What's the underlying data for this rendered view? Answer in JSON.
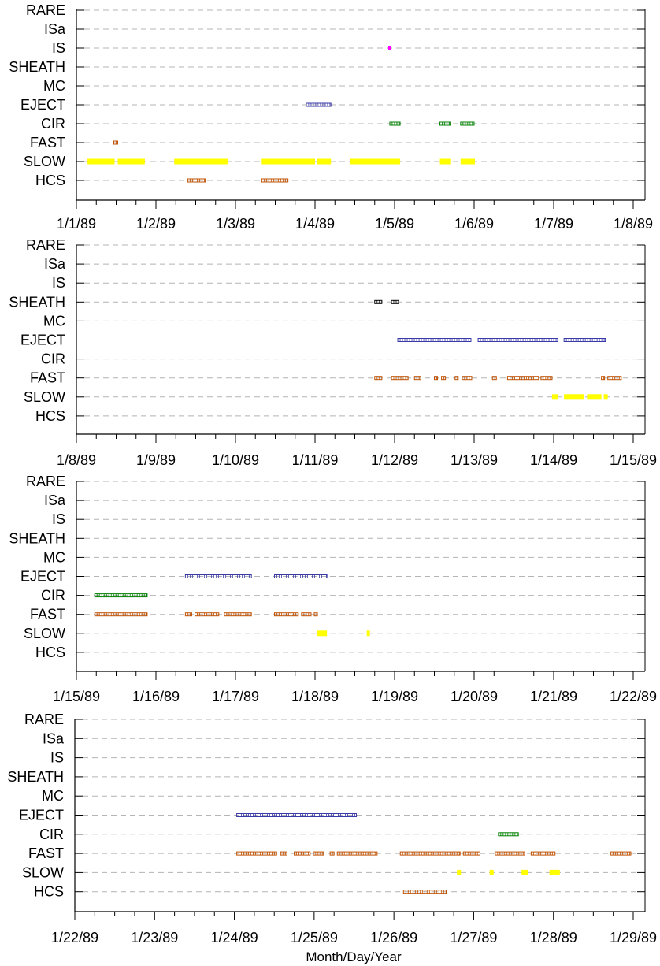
{
  "row_labels": [
    "RARE",
    "ISa",
    "IS",
    "SHEATH",
    "MC",
    "EJECT",
    "CIR",
    "FAST",
    "SLOW",
    "HCS"
  ],
  "x_title": "Month/Day/Year",
  "colors": {
    "IS": "#ff00ff",
    "SHEATH": "#000000",
    "EJECT": "#3a3aa8",
    "CIR": "#008000",
    "FAST": "#c05000",
    "SLOW": "#ffff00",
    "HCS": "#c05000",
    "grid": "#b4b4b4"
  },
  "chart_data": [
    {
      "type": "timeline",
      "x_range_days": [
        1,
        8
      ],
      "tick_labels": [
        "1/1/89",
        "1/2/89",
        "1/3/89",
        "1/4/89",
        "1/5/89",
        "1/6/89",
        "1/7/89",
        "1/8/89"
      ],
      "events": [
        {
          "row": "IS",
          "start": 4.92,
          "end": 4.96,
          "style": "solid"
        },
        {
          "row": "EJECT",
          "start": 3.89,
          "end": 4.2,
          "style": "hollow"
        },
        {
          "row": "CIR",
          "start": 4.94,
          "end": 5.07,
          "style": "hollow"
        },
        {
          "row": "CIR",
          "start": 5.57,
          "end": 5.7,
          "style": "hollow"
        },
        {
          "row": "CIR",
          "start": 5.83,
          "end": 6.0,
          "style": "hollow"
        },
        {
          "row": "FAST",
          "start": 1.47,
          "end": 1.52,
          "style": "hollow"
        },
        {
          "row": "SLOW",
          "start": 1.14,
          "end": 1.48,
          "style": "solid"
        },
        {
          "row": "SLOW",
          "start": 1.52,
          "end": 1.86,
          "style": "solid"
        },
        {
          "row": "SLOW",
          "start": 2.23,
          "end": 2.9,
          "style": "solid"
        },
        {
          "row": "SLOW",
          "start": 3.33,
          "end": 4.0,
          "style": "solid"
        },
        {
          "row": "SLOW",
          "start": 4.02,
          "end": 4.2,
          "style": "solid"
        },
        {
          "row": "SLOW",
          "start": 4.44,
          "end": 5.07,
          "style": "solid"
        },
        {
          "row": "SLOW",
          "start": 5.57,
          "end": 5.7,
          "style": "solid"
        },
        {
          "row": "SLOW",
          "start": 5.83,
          "end": 6.01,
          "style": "solid"
        },
        {
          "row": "HCS",
          "start": 2.4,
          "end": 2.62,
          "style": "hollow"
        },
        {
          "row": "HCS",
          "start": 3.33,
          "end": 3.66,
          "style": "hollow"
        }
      ]
    },
    {
      "type": "timeline",
      "x_range_days": [
        8,
        15
      ],
      "tick_labels": [
        "1/8/89",
        "1/9/89",
        "1/10/89",
        "1/11/89",
        "1/12/89",
        "1/13/89",
        "1/14/89",
        "1/15/89"
      ],
      "events": [
        {
          "row": "SHEATH",
          "start": 11.75,
          "end": 11.84,
          "style": "hollow"
        },
        {
          "row": "SHEATH",
          "start": 11.96,
          "end": 12.05,
          "style": "hollow"
        },
        {
          "row": "EJECT",
          "start": 12.04,
          "end": 12.96,
          "style": "hollow"
        },
        {
          "row": "EJECT",
          "start": 13.05,
          "end": 14.05,
          "style": "hollow"
        },
        {
          "row": "EJECT",
          "start": 14.13,
          "end": 14.65,
          "style": "hollow"
        },
        {
          "row": "FAST",
          "start": 11.75,
          "end": 11.84,
          "style": "hollow"
        },
        {
          "row": "FAST",
          "start": 11.96,
          "end": 12.17,
          "style": "hollow"
        },
        {
          "row": "FAST",
          "start": 12.25,
          "end": 12.33,
          "style": "hollow"
        },
        {
          "row": "FAST",
          "start": 12.5,
          "end": 12.54,
          "style": "hollow"
        },
        {
          "row": "FAST",
          "start": 12.59,
          "end": 12.64,
          "style": "hollow"
        },
        {
          "row": "FAST",
          "start": 12.76,
          "end": 12.8,
          "style": "hollow"
        },
        {
          "row": "FAST",
          "start": 12.85,
          "end": 12.97,
          "style": "hollow"
        },
        {
          "row": "FAST",
          "start": 13.23,
          "end": 13.28,
          "style": "hollow"
        },
        {
          "row": "FAST",
          "start": 13.42,
          "end": 13.81,
          "style": "hollow"
        },
        {
          "row": "FAST",
          "start": 13.84,
          "end": 13.98,
          "style": "hollow"
        },
        {
          "row": "FAST",
          "start": 14.6,
          "end": 14.64,
          "style": "hollow"
        },
        {
          "row": "FAST",
          "start": 14.68,
          "end": 14.85,
          "style": "hollow"
        },
        {
          "row": "SLOW",
          "start": 13.98,
          "end": 14.06,
          "style": "solid"
        },
        {
          "row": "SLOW",
          "start": 14.13,
          "end": 14.38,
          "style": "solid"
        },
        {
          "row": "SLOW",
          "start": 14.42,
          "end": 14.6,
          "style": "solid"
        },
        {
          "row": "SLOW",
          "start": 14.63,
          "end": 14.68,
          "style": "solid"
        }
      ]
    },
    {
      "type": "timeline",
      "x_range_days": [
        15,
        22
      ],
      "tick_labels": [
        "1/15/89",
        "1/16/89",
        "1/17/89",
        "1/18/89",
        "1/19/89",
        "1/20/89",
        "1/21/89",
        "1/22/89"
      ],
      "events": [
        {
          "row": "EJECT",
          "start": 16.37,
          "end": 17.2,
          "style": "hollow"
        },
        {
          "row": "EJECT",
          "start": 17.49,
          "end": 18.15,
          "style": "hollow"
        },
        {
          "row": "CIR",
          "start": 15.23,
          "end": 15.89,
          "style": "hollow"
        },
        {
          "row": "FAST",
          "start": 15.23,
          "end": 15.89,
          "style": "hollow"
        },
        {
          "row": "FAST",
          "start": 16.37,
          "end": 16.45,
          "style": "hollow"
        },
        {
          "row": "FAST",
          "start": 16.49,
          "end": 16.79,
          "style": "hollow"
        },
        {
          "row": "FAST",
          "start": 16.86,
          "end": 17.2,
          "style": "hollow"
        },
        {
          "row": "FAST",
          "start": 17.49,
          "end": 17.79,
          "style": "hollow"
        },
        {
          "row": "FAST",
          "start": 17.83,
          "end": 17.95,
          "style": "hollow"
        },
        {
          "row": "FAST",
          "start": 17.99,
          "end": 18.03,
          "style": "hollow"
        },
        {
          "row": "SLOW",
          "start": 18.03,
          "end": 18.15,
          "style": "solid"
        },
        {
          "row": "SLOW",
          "start": 18.65,
          "end": 18.69,
          "style": "solid"
        }
      ]
    },
    {
      "type": "timeline",
      "x_range_days": [
        22,
        29
      ],
      "tick_labels": [
        "1/22/89",
        "1/23/89",
        "1/24/89",
        "1/25/89",
        "1/26/89",
        "1/27/89",
        "1/28/89",
        "1/29/89"
      ],
      "xlabel": "Month/Day/Year",
      "events": [
        {
          "row": "EJECT",
          "start": 24.03,
          "end": 25.53,
          "style": "hollow"
        },
        {
          "row": "CIR",
          "start": 27.31,
          "end": 27.56,
          "style": "hollow"
        },
        {
          "row": "FAST",
          "start": 24.03,
          "end": 24.53,
          "style": "hollow"
        },
        {
          "row": "FAST",
          "start": 24.58,
          "end": 24.66,
          "style": "hollow"
        },
        {
          "row": "FAST",
          "start": 24.75,
          "end": 24.95,
          "style": "hollow"
        },
        {
          "row": "FAST",
          "start": 24.99,
          "end": 25.12,
          "style": "hollow"
        },
        {
          "row": "FAST",
          "start": 25.2,
          "end": 25.25,
          "style": "hollow"
        },
        {
          "row": "FAST",
          "start": 25.29,
          "end": 25.79,
          "style": "hollow"
        },
        {
          "row": "FAST",
          "start": 26.08,
          "end": 26.83,
          "style": "hollow"
        },
        {
          "row": "FAST",
          "start": 26.87,
          "end": 27.08,
          "style": "hollow"
        },
        {
          "row": "FAST",
          "start": 27.27,
          "end": 27.64,
          "style": "hollow"
        },
        {
          "row": "FAST",
          "start": 27.72,
          "end": 28.02,
          "style": "hollow"
        },
        {
          "row": "FAST",
          "start": 28.72,
          "end": 28.97,
          "style": "hollow"
        },
        {
          "row": "SLOW",
          "start": 26.79,
          "end": 26.84,
          "style": "solid"
        },
        {
          "row": "SLOW",
          "start": 27.2,
          "end": 27.25,
          "style": "solid"
        },
        {
          "row": "SLOW",
          "start": 27.6,
          "end": 27.68,
          "style": "solid"
        },
        {
          "row": "SLOW",
          "start": 27.95,
          "end": 28.08,
          "style": "solid"
        },
        {
          "row": "HCS",
          "start": 26.12,
          "end": 26.66,
          "style": "hollow"
        }
      ]
    }
  ]
}
